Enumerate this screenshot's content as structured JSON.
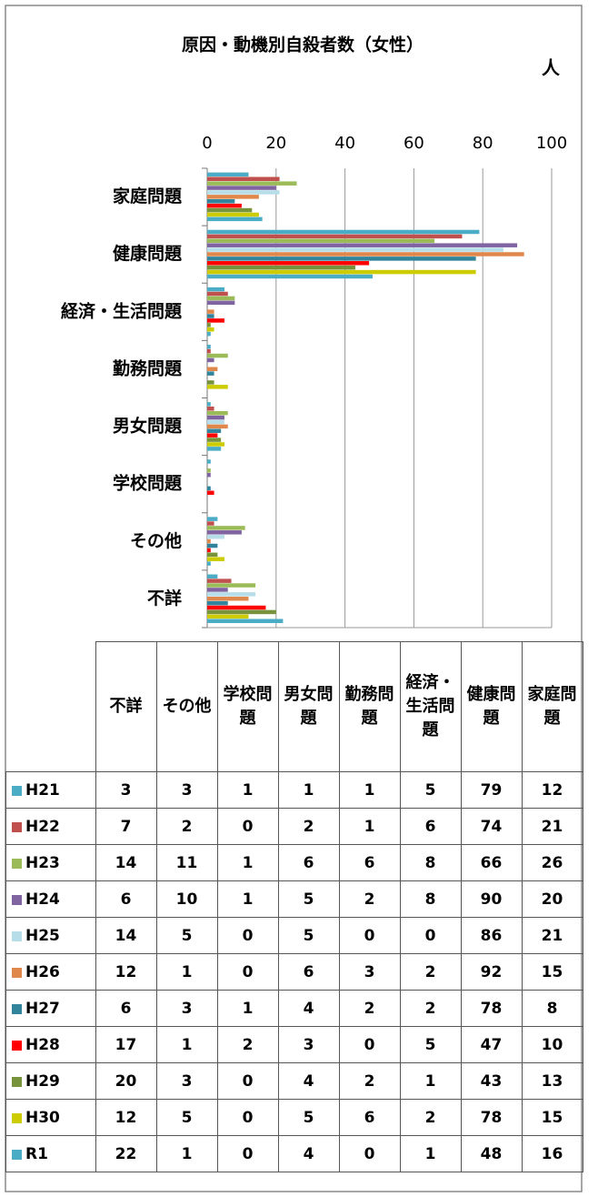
{
  "chart_data": {
    "type": "bar",
    "orientation": "horizontal",
    "title": "原因・動機別自殺者数（女性）",
    "unit": "人",
    "categories": [
      "不詳",
      "その他",
      "学校問題",
      "男女問題",
      "勤務問題",
      "経済・生活問題",
      "健康問題",
      "家庭問題"
    ],
    "xlim": [
      0,
      100
    ],
    "xticks": [
      0,
      20,
      40,
      60,
      80,
      100
    ],
    "grid": true,
    "series": [
      {
        "name": "H21",
        "color": "#4bacc6",
        "values": [
          3,
          3,
          1,
          1,
          1,
          5,
          79,
          12
        ]
      },
      {
        "name": "H22",
        "color": "#c0504d",
        "values": [
          7,
          2,
          0,
          2,
          1,
          6,
          74,
          21
        ]
      },
      {
        "name": "H23",
        "color": "#9bbb59",
        "values": [
          14,
          11,
          1,
          6,
          6,
          8,
          66,
          26
        ]
      },
      {
        "name": "H24",
        "color": "#8064a2",
        "values": [
          6,
          10,
          1,
          5,
          2,
          8,
          90,
          20
        ]
      },
      {
        "name": "H25",
        "color": "#b7dee8",
        "values": [
          14,
          5,
          0,
          5,
          0,
          0,
          86,
          21
        ]
      },
      {
        "name": "H26",
        "color": "#e0884c",
        "values": [
          12,
          1,
          0,
          6,
          3,
          2,
          92,
          15
        ]
      },
      {
        "name": "H27",
        "color": "#31849b",
        "values": [
          6,
          3,
          1,
          4,
          2,
          2,
          78,
          8
        ]
      },
      {
        "name": "H28",
        "color": "#ff0000",
        "values": [
          17,
          1,
          2,
          3,
          0,
          5,
          47,
          10
        ]
      },
      {
        "name": "H29",
        "color": "#77933c",
        "values": [
          20,
          3,
          0,
          4,
          2,
          1,
          43,
          13
        ]
      },
      {
        "name": "H30",
        "color": "#cccc00",
        "values": [
          12,
          5,
          0,
          5,
          6,
          2,
          78,
          15
        ]
      },
      {
        "name": "R1",
        "color": "#4bacc6",
        "values": [
          22,
          1,
          0,
          4,
          0,
          1,
          48,
          16
        ]
      }
    ]
  }
}
